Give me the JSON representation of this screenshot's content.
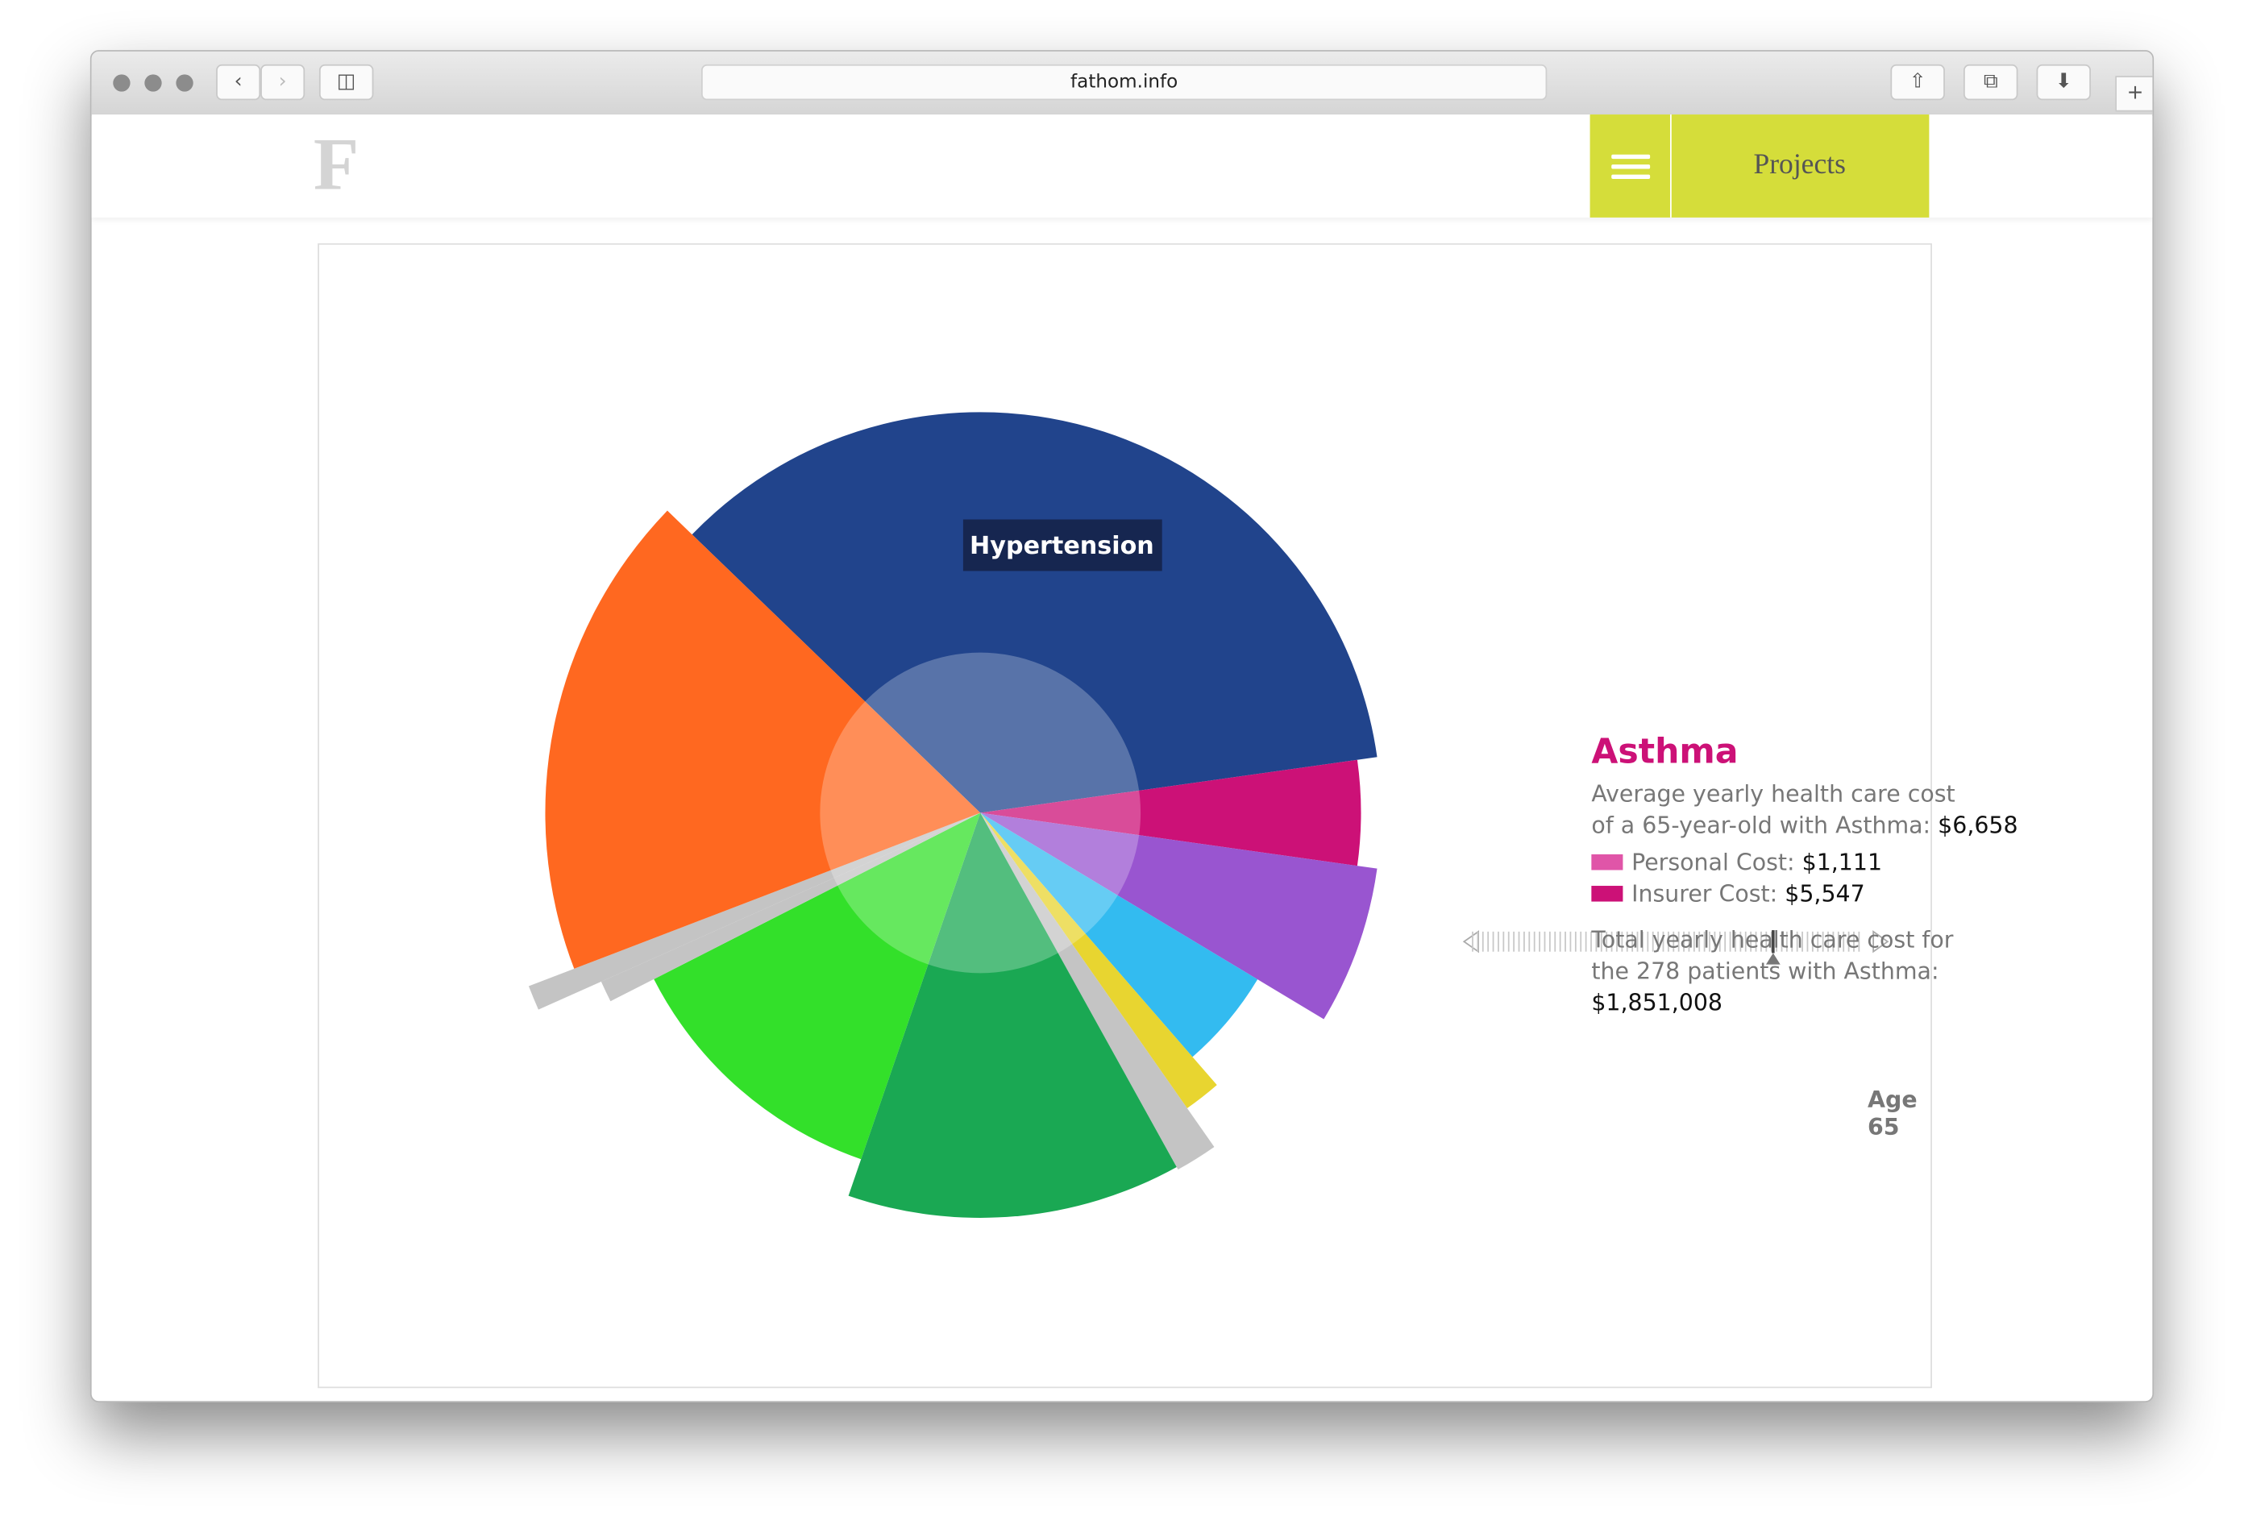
{
  "browser": {
    "url": "fathom.info"
  },
  "header": {
    "logo": "F",
    "nav": "Projects"
  },
  "chart_data": {
    "type": "polar-area",
    "tooltip": "Hypertension",
    "start_angle": -136,
    "values": [
      280,
      266,
      280,
      226,
      252,
      285,
      283,
      256,
      290,
      338,
      304
    ],
    "spans": [
      128,
      16,
      23,
      18,
      6,
      6,
      48,
      44,
      3,
      3,
      65
    ],
    "colors": [
      "#21448c",
      "#cc1177",
      "#9955d0",
      "#33bbf0",
      "#e8d530",
      "#c4c4c4",
      "#1aa853",
      "#33e02a",
      "#c4c4c4",
      "#c4c4c4",
      "#ff6820"
    ]
  },
  "panel": {
    "title": "Asthma",
    "line1": "Average yearly health care cost",
    "line2": "of a 65-year-old with Asthma:",
    "average_cost": "$6,658",
    "legend": [
      {
        "label": "Personal Cost:",
        "value": "$1,111",
        "color": "#e055a8"
      },
      {
        "label": "Insurer Cost:",
        "value": "$5,547",
        "color": "#cc1177"
      }
    ],
    "total_line1": "Total yearly health care cost for",
    "total_line2": "the 278 patients with Asthma:",
    "total_cost": "$1,851,008",
    "slider_label": "Age 65"
  }
}
